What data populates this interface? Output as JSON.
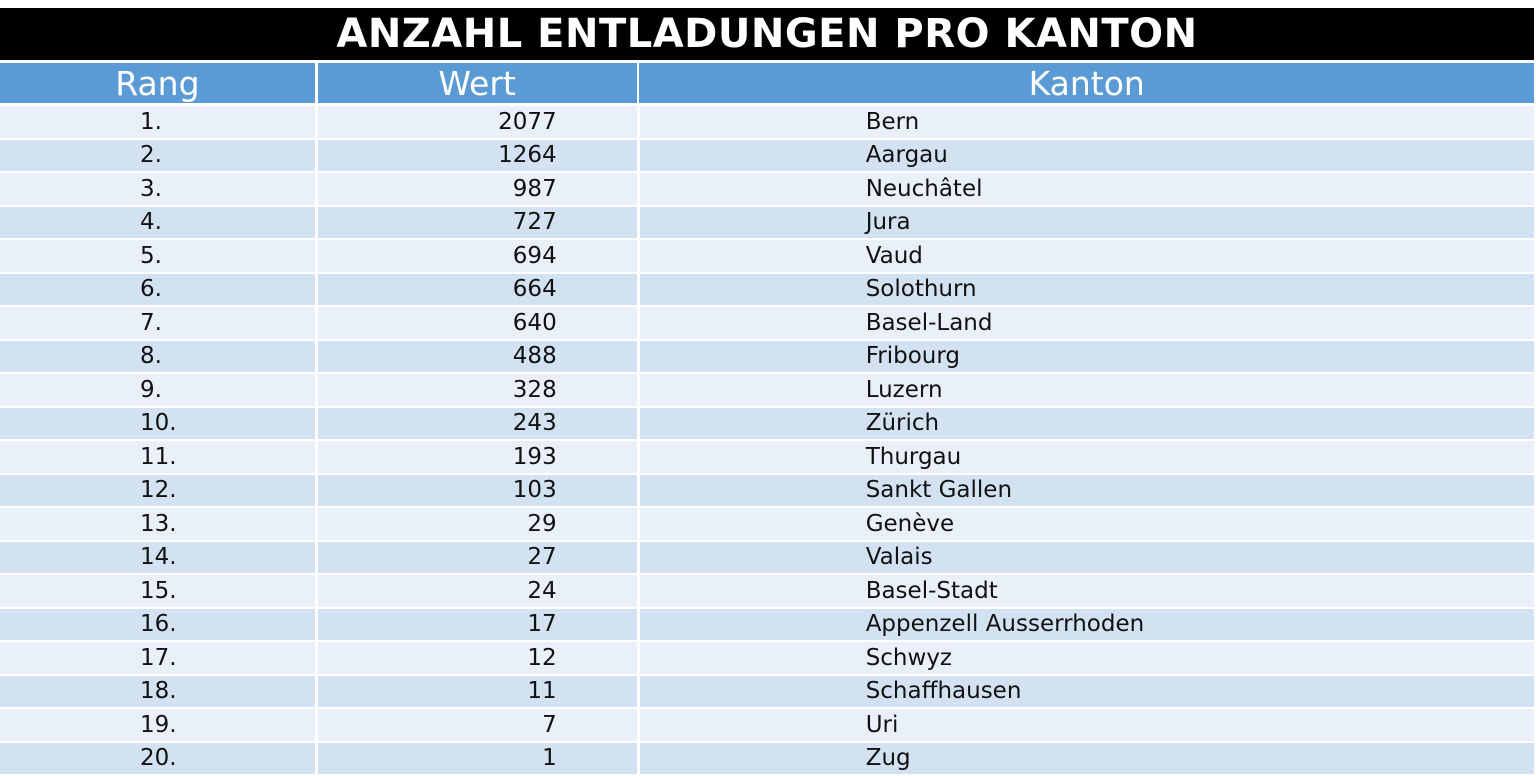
{
  "title": "ANZAHL ENTLADUNGEN PRO KANTON",
  "columns": {
    "rang": "Rang",
    "wert": "Wert",
    "kanton": "Kanton"
  },
  "rows": [
    {
      "rang": "1.",
      "wert": "2077",
      "kanton": "Bern"
    },
    {
      "rang": "2.",
      "wert": "1264",
      "kanton": "Aargau"
    },
    {
      "rang": "3.",
      "wert": "987",
      "kanton": "Neuchâtel"
    },
    {
      "rang": "4.",
      "wert": "727",
      "kanton": "Jura"
    },
    {
      "rang": "5.",
      "wert": "694",
      "kanton": "Vaud"
    },
    {
      "rang": "6.",
      "wert": "664",
      "kanton": "Solothurn"
    },
    {
      "rang": "7.",
      "wert": "640",
      "kanton": "Basel-Land"
    },
    {
      "rang": "8.",
      "wert": "488",
      "kanton": "Fribourg"
    },
    {
      "rang": "9.",
      "wert": "328",
      "kanton": "Luzern"
    },
    {
      "rang": "10.",
      "wert": "243",
      "kanton": "Zürich"
    },
    {
      "rang": "11.",
      "wert": "193",
      "kanton": "Thurgau"
    },
    {
      "rang": "12.",
      "wert": "103",
      "kanton": "Sankt Gallen"
    },
    {
      "rang": "13.",
      "wert": "29",
      "kanton": "Genève"
    },
    {
      "rang": "14.",
      "wert": "27",
      "kanton": "Valais"
    },
    {
      "rang": "15.",
      "wert": "24",
      "kanton": "Basel-Stadt"
    },
    {
      "rang": "16.",
      "wert": "17",
      "kanton": "Appenzell Ausserrhoden"
    },
    {
      "rang": "17.",
      "wert": "12",
      "kanton": "Schwyz"
    },
    {
      "rang": "18.",
      "wert": "11",
      "kanton": "Schaffhausen"
    },
    {
      "rang": "19.",
      "wert": "7",
      "kanton": "Uri"
    },
    {
      "rang": "20.",
      "wert": "1",
      "kanton": "Zug"
    }
  ],
  "colors": {
    "title_bg": "#000000",
    "header_bg": "#5b9bd5",
    "row_light": "#e9f0f9",
    "row_dark": "#d3e2f2"
  }
}
